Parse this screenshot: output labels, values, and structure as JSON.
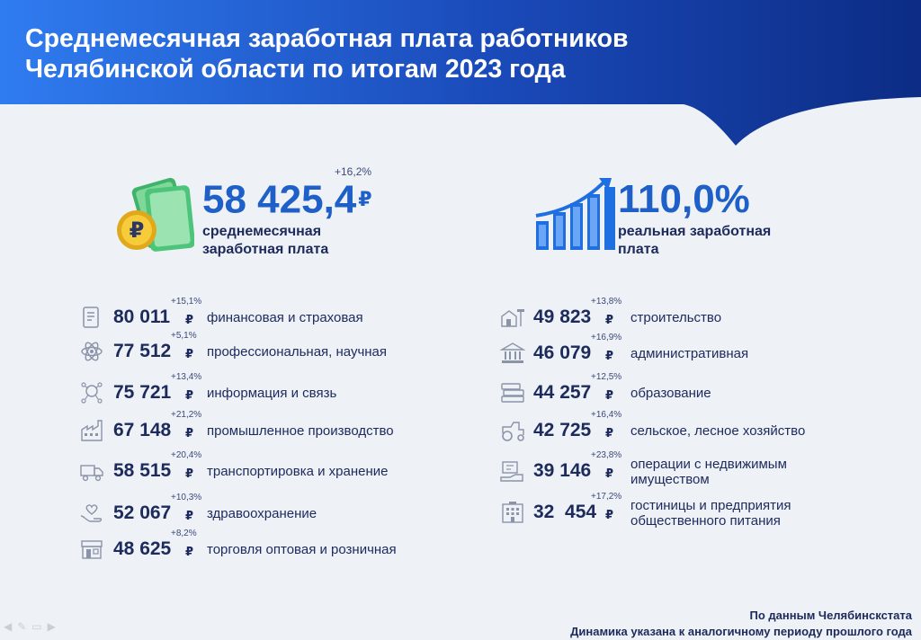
{
  "header": {
    "title_line1": "Среднемесячная заработная плата работников",
    "title_line2": "Челябинской области по итогам 2023 года",
    "gradient_from": "#2f7cf0",
    "gradient_to": "#0c2c85"
  },
  "average": {
    "value": "58 425,4",
    "currency": "₽",
    "delta": "+16,2%",
    "label_line1": "среднемесячная",
    "label_line2": "заработная плата",
    "icon": "money-icon"
  },
  "real": {
    "value": "110,0%",
    "label_line1": "реальная заработная",
    "label_line2": "плата",
    "icon": "growth-chart-icon"
  },
  "currency_sign": "₽",
  "left_items": [
    {
      "value": "80 011",
      "delta": "+15,1%",
      "label": "финансовая и страховая",
      "icon": "finance-document-icon"
    },
    {
      "value": "77 512",
      "delta": "+5,1%",
      "label": "профессиональная, научная",
      "icon": "science-atom-icon"
    },
    {
      "value": "75 721",
      "delta": "+13,4%",
      "label": "информация и связь",
      "icon": "network-icon"
    },
    {
      "value": "67 148",
      "delta": "+21,2%",
      "label": "промышленное производство",
      "icon": "factory-icon"
    },
    {
      "value": "58 515",
      "delta": "+20,4%",
      "label": "транспортировка и хранение",
      "icon": "truck-icon"
    },
    {
      "value": "52 067",
      "delta": "+10,3%",
      "label": "здравоохранение",
      "icon": "healthcare-hands-icon"
    },
    {
      "value": "48 625",
      "delta": "+8,2%",
      "label": "торговля оптовая и розничная",
      "icon": "shop-icon"
    }
  ],
  "right_items": [
    {
      "value": "49 823",
      "delta": "+13,8%",
      "label": "строительство",
      "icon": "construction-icon"
    },
    {
      "value": "46 079",
      "delta": "+16,9%",
      "label": "административная",
      "icon": "government-building-icon"
    },
    {
      "value": "44 257",
      "delta": "+12,5%",
      "label": "образование",
      "icon": "books-icon"
    },
    {
      "value": "42 725",
      "delta": "+16,4%",
      "label": "сельское, лесное хозяйство",
      "icon": "tractor-icon"
    },
    {
      "value": "39 146",
      "delta": "+23,8%",
      "label_line1": "операции с недвижимым",
      "label_line2": "имуществом",
      "icon": "realty-icon"
    },
    {
      "value": "32  454",
      "delta": "+17,2%",
      "label_line1": "гостиницы и предприятия",
      "label_line2": "общественного питания",
      "icon": "hotel-icon"
    }
  ],
  "footer": {
    "source_line1": "По данным Челябинскстата",
    "source_line2": "Динамика указана к аналогичному периоду прошлого года"
  }
}
